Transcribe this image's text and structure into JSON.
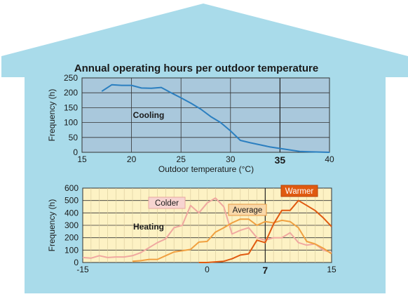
{
  "title": "Annual operating hours per outdoor temperature",
  "colors": {
    "house": "#a9dbea",
    "cooling_bg": "#a9c8dc",
    "heating_bg": "#fdf2c4",
    "cooling_line": "#2b7fc0",
    "colder": "#f0a8a0",
    "average": "#f0a040",
    "warmer": "#e05a10"
  },
  "chart_data": [
    {
      "type": "line",
      "xlabel": "Outdoor temperature (°C)",
      "ylabel": "Frequency (h)",
      "xlim": [
        15,
        40
      ],
      "ylim": [
        0,
        250
      ],
      "x_ticks": [
        "15",
        "20",
        "25",
        "30",
        "35",
        "40"
      ],
      "y_ticks": [
        "0",
        "50",
        "100",
        "150",
        "200",
        "250"
      ],
      "grid": true,
      "reference_line": {
        "x": 35,
        "label": "35"
      },
      "series": [
        {
          "name": "Cooling",
          "color": "#2b7fc0",
          "x": [
            17,
            18,
            19,
            20,
            21,
            22,
            23,
            24,
            25,
            26,
            27,
            28,
            29,
            30,
            31,
            32,
            33,
            34,
            35,
            36,
            37,
            38,
            39,
            40
          ],
          "y": [
            205,
            227,
            225,
            225,
            216,
            215,
            218,
            200,
            183,
            165,
            145,
            120,
            100,
            72,
            40,
            32,
            25,
            18,
            13,
            8,
            3,
            2,
            1,
            0
          ]
        }
      ]
    },
    {
      "type": "line",
      "xlabel": "",
      "ylabel": "Frequency (h)",
      "xlim": [
        -15,
        15
      ],
      "ylim": [
        0,
        600
      ],
      "x_ticks": [
        "-15",
        "0",
        "7",
        "15"
      ],
      "y_ticks": [
        "0",
        "100",
        "200",
        "300",
        "400",
        "500",
        "600"
      ],
      "grid": true,
      "reference_line": {
        "x": 7,
        "label": "7"
      },
      "annotation": "Heating",
      "series": [
        {
          "name": "Colder",
          "color": "#f0a8a0",
          "x": [
            -15,
            -14,
            -13,
            -12,
            -11,
            -10,
            -9,
            -8,
            -7,
            -6,
            -5,
            -4,
            -3,
            -2,
            -1,
            0,
            1,
            2,
            3,
            4,
            5,
            6,
            7,
            8,
            9,
            10,
            11,
            12,
            13,
            14,
            15
          ],
          "y": [
            40,
            35,
            55,
            40,
            45,
            45,
            55,
            80,
            120,
            160,
            190,
            280,
            300,
            460,
            400,
            480,
            520,
            450,
            230,
            260,
            280,
            200,
            180,
            200,
            200,
            240,
            160,
            140,
            150,
            100,
            80
          ]
        },
        {
          "name": "Average",
          "color": "#f0a040",
          "x": [
            -9,
            -8,
            -7,
            -6,
            -5,
            -4,
            -3,
            -2,
            -1,
            0,
            1,
            2,
            3,
            4,
            5,
            6,
            7,
            8,
            9,
            10,
            11,
            12,
            13,
            14,
            15
          ],
          "y": [
            10,
            15,
            25,
            25,
            55,
            85,
            95,
            105,
            165,
            170,
            245,
            280,
            320,
            350,
            350,
            300,
            330,
            320,
            340,
            330,
            280,
            170,
            150,
            115,
            70
          ]
        },
        {
          "name": "Warmer",
          "color": "#e05a10",
          "x": [
            -1,
            0,
            1,
            2,
            3,
            4,
            5,
            6,
            7,
            8,
            9,
            10,
            11,
            12,
            13,
            14,
            15
          ],
          "y": [
            0,
            0,
            5,
            10,
            30,
            60,
            70,
            180,
            160,
            310,
            420,
            420,
            500,
            460,
            420,
            360,
            290
          ]
        }
      ]
    }
  ]
}
